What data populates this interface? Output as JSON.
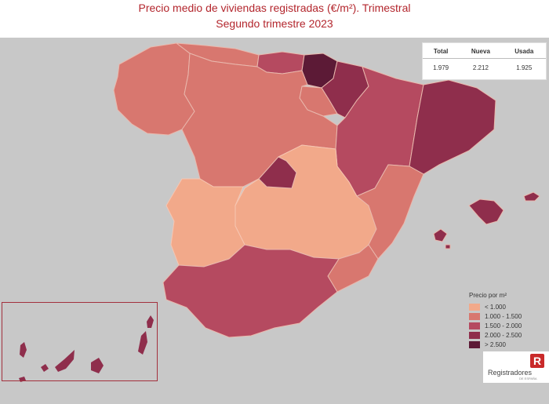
{
  "title_line1": "Precio medio de viviendas registradas (€/m²). Trimestral",
  "title_line2": "Segundo trimestre 2023",
  "summary": {
    "headers": [
      "Total",
      "Nueva",
      "Usada"
    ],
    "values": [
      "1.979",
      "2.212",
      "1.925"
    ]
  },
  "legend": {
    "title": "Precio por m²",
    "items": [
      {
        "label": "< 1.000",
        "color": "#f2a98a"
      },
      {
        "label": "1.000 - 1.500",
        "color": "#d8776f"
      },
      {
        "label": "1.500 - 2.000",
        "color": "#b54a60"
      },
      {
        "label": "2.000 - 2.500",
        "color": "#8f2e4c"
      },
      {
        "label": "> 2.500",
        "color": "#5c1a36"
      }
    ]
  },
  "logo": {
    "mark": "R",
    "name": "Registradores",
    "sub": "DE ESPAÑA"
  },
  "regions": [
    {
      "name": "Galicia",
      "range": "1.000 - 1.500"
    },
    {
      "name": "Asturias",
      "range": "1.000 - 1.500"
    },
    {
      "name": "Cantabria",
      "range": "1.500 - 2.000"
    },
    {
      "name": "País Vasco",
      "range": "> 2.500"
    },
    {
      "name": "Navarra",
      "range": "2.000 - 2.500"
    },
    {
      "name": "La Rioja",
      "range": "1.000 - 1.500"
    },
    {
      "name": "Castilla y León",
      "range": "1.000 - 1.500"
    },
    {
      "name": "Aragón",
      "range": "1.500 - 2.000"
    },
    {
      "name": "Cataluña",
      "range": "2.000 - 2.500"
    },
    {
      "name": "Madrid",
      "range": "2.000 - 2.500"
    },
    {
      "name": "Castilla-La Mancha",
      "range": "< 1.000"
    },
    {
      "name": "Extremadura",
      "range": "< 1.000"
    },
    {
      "name": "Comunidad Valenciana",
      "range": "1.000 - 1.500"
    },
    {
      "name": "Región de Murcia",
      "range": "1.000 - 1.500"
    },
    {
      "name": "Andalucía",
      "range": "1.500 - 2.000"
    },
    {
      "name": "Islas Baleares",
      "range": "2.000 - 2.500"
    },
    {
      "name": "Canarias",
      "range": "2.000 - 2.500"
    }
  ]
}
